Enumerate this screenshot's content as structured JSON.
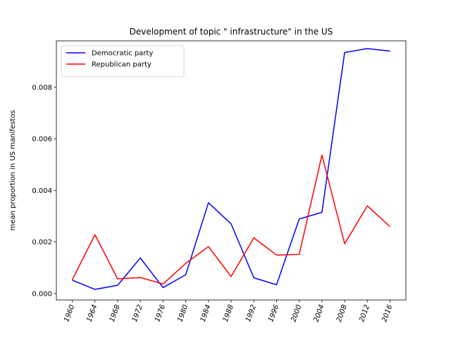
{
  "chart_data": {
    "type": "line",
    "title": "Development of topic \" infrastructure\" in the US",
    "xlabel": "",
    "ylabel": "mean proportion in US manifestos",
    "x": [
      "1960",
      "1964",
      "1968",
      "1972",
      "1976",
      "1980",
      "1984",
      "1988",
      "1992",
      "1996",
      "2000",
      "2004",
      "2008",
      "2012",
      "2016"
    ],
    "ylim": [
      -0.00025,
      0.0098
    ],
    "yticks": [
      0.0,
      0.002,
      0.004,
      0.006,
      0.008
    ],
    "ytick_labels": [
      "0.000",
      "0.002",
      "0.004",
      "0.006",
      "0.008"
    ],
    "grid": false,
    "legend_position": "top-left",
    "series": [
      {
        "name": "Democratic party",
        "color": "#0000ff",
        "values": [
          0.00052,
          0.00016,
          0.00032,
          0.00138,
          0.00023,
          0.00073,
          0.00352,
          0.0027,
          0.00061,
          0.00034,
          0.00289,
          0.00315,
          0.00935,
          0.0095,
          0.0094
        ]
      },
      {
        "name": "Republican party",
        "color": "#ff0000",
        "values": [
          0.00053,
          0.00228,
          0.00057,
          0.00062,
          0.00037,
          0.00117,
          0.00182,
          0.00066,
          0.00216,
          0.00149,
          0.00152,
          0.00537,
          0.00193,
          0.0034,
          0.00259
        ]
      }
    ]
  }
}
